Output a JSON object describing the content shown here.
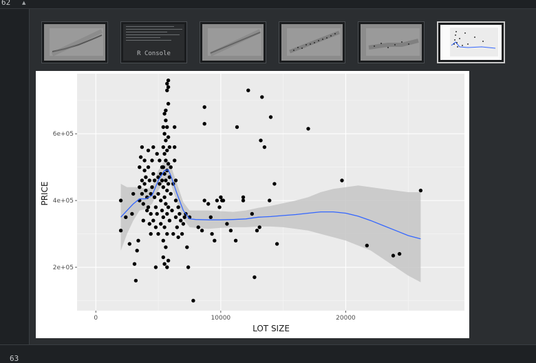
{
  "editor": {
    "line_above": "62",
    "line_below": "63"
  },
  "plots_pane": {
    "thumbnails": [
      {
        "label": "",
        "kind": "plot"
      },
      {
        "label": "R Console",
        "kind": "console"
      },
      {
        "label": "",
        "kind": "plot"
      },
      {
        "label": "",
        "kind": "plot"
      },
      {
        "label": "",
        "kind": "plot"
      },
      {
        "label": "",
        "kind": "plot",
        "active": true
      }
    ]
  },
  "chart_data": {
    "type": "scatter",
    "title": "",
    "xlabel": "LOT SIZE",
    "ylabel": "PRICE",
    "xlim": [
      -1500,
      29500
    ],
    "ylim": [
      70000,
      780000
    ],
    "x_ticks": [
      0,
      10000,
      20000
    ],
    "x_tick_labels": [
      "0",
      "10000",
      "20000"
    ],
    "y_ticks": [
      200000,
      400000,
      600000
    ],
    "y_tick_labels": [
      "2e+05",
      "4e+05",
      "6e+05"
    ],
    "grid": true,
    "panel_background": "#ebebeb",
    "point_color": "#000000",
    "smooth_color": "#3366ff",
    "band_color": "#bdbdbd",
    "points": [
      [
        2000,
        400000
      ],
      [
        2000,
        310000
      ],
      [
        2400,
        350000
      ],
      [
        2700,
        270000
      ],
      [
        2900,
        360000
      ],
      [
        3000,
        420000
      ],
      [
        3100,
        210000
      ],
      [
        3200,
        160000
      ],
      [
        3300,
        250000
      ],
      [
        3400,
        280000
      ],
      [
        3500,
        500000
      ],
      [
        3500,
        440000
      ],
      [
        3500,
        400000
      ],
      [
        3600,
        530000
      ],
      [
        3700,
        560000
      ],
      [
        3700,
        460000
      ],
      [
        3700,
        420000
      ],
      [
        3800,
        390000
      ],
      [
        3800,
        340000
      ],
      [
        3900,
        520000
      ],
      [
        3900,
        490000
      ],
      [
        3900,
        450000
      ],
      [
        4000,
        470000
      ],
      [
        4000,
        430000
      ],
      [
        4100,
        410000
      ],
      [
        4100,
        370000
      ],
      [
        4200,
        550000
      ],
      [
        4200,
        500000
      ],
      [
        4200,
        380000
      ],
      [
        4300,
        330000
      ],
      [
        4300,
        460000
      ],
      [
        4400,
        420000
      ],
      [
        4400,
        360000
      ],
      [
        4400,
        300000
      ],
      [
        4500,
        520000
      ],
      [
        4500,
        440000
      ],
      [
        4600,
        560000
      ],
      [
        4600,
        480000
      ],
      [
        4600,
        340000
      ],
      [
        4700,
        410000
      ],
      [
        4700,
        460000
      ],
      [
        4800,
        380000
      ],
      [
        4800,
        320000
      ],
      [
        4800,
        200000
      ],
      [
        4900,
        540000
      ],
      [
        4900,
        360000
      ],
      [
        5000,
        470000
      ],
      [
        5000,
        420000
      ],
      [
        5000,
        300000
      ],
      [
        5100,
        520000
      ],
      [
        5100,
        450000
      ],
      [
        5200,
        480000
      ],
      [
        5200,
        330000
      ],
      [
        5200,
        400000
      ],
      [
        5300,
        500000
      ],
      [
        5300,
        460000
      ],
      [
        5300,
        370000
      ],
      [
        5400,
        620000
      ],
      [
        5400,
        560000
      ],
      [
        5400,
        500000
      ],
      [
        5400,
        440000
      ],
      [
        5400,
        350000
      ],
      [
        5400,
        280000
      ],
      [
        5400,
        230000
      ],
      [
        5500,
        660000
      ],
      [
        5500,
        600000
      ],
      [
        5500,
        540000
      ],
      [
        5500,
        480000
      ],
      [
        5500,
        410000
      ],
      [
        5500,
        320000
      ],
      [
        5500,
        210000
      ],
      [
        5600,
        670000
      ],
      [
        5600,
        640000
      ],
      [
        5600,
        580000
      ],
      [
        5600,
        520000
      ],
      [
        5600,
        460000
      ],
      [
        5600,
        390000
      ],
      [
        5600,
        260000
      ],
      [
        5700,
        750000
      ],
      [
        5700,
        730000
      ],
      [
        5700,
        620000
      ],
      [
        5700,
        550000
      ],
      [
        5700,
        490000
      ],
      [
        5700,
        430000
      ],
      [
        5700,
        360000
      ],
      [
        5700,
        300000
      ],
      [
        5700,
        200000
      ],
      [
        5800,
        760000
      ],
      [
        5800,
        740000
      ],
      [
        5800,
        690000
      ],
      [
        5800,
        590000
      ],
      [
        5800,
        510000
      ],
      [
        5800,
        450000
      ],
      [
        5800,
        380000
      ],
      [
        5800,
        220000
      ],
      [
        5900,
        560000
      ],
      [
        5900,
        470000
      ],
      [
        5900,
        340000
      ],
      [
        6000,
        500000
      ],
      [
        6000,
        420000
      ],
      [
        6100,
        370000
      ],
      [
        6200,
        450000
      ],
      [
        6200,
        300000
      ],
      [
        6300,
        620000
      ],
      [
        6300,
        560000
      ],
      [
        6300,
        520000
      ],
      [
        6400,
        460000
      ],
      [
        6400,
        400000
      ],
      [
        6400,
        350000
      ],
      [
        6500,
        320000
      ],
      [
        6600,
        380000
      ],
      [
        6600,
        290000
      ],
      [
        6700,
        360000
      ],
      [
        6800,
        340000
      ],
      [
        6900,
        300000
      ],
      [
        7000,
        330000
      ],
      [
        7100,
        350000
      ],
      [
        7200,
        360000
      ],
      [
        7300,
        260000
      ],
      [
        7400,
        200000
      ],
      [
        7500,
        350000
      ],
      [
        7800,
        100000
      ],
      [
        8200,
        320000
      ],
      [
        8500,
        310000
      ],
      [
        8700,
        400000
      ],
      [
        8700,
        630000
      ],
      [
        8700,
        680000
      ],
      [
        9000,
        390000
      ],
      [
        9200,
        350000
      ],
      [
        9300,
        300000
      ],
      [
        9500,
        280000
      ],
      [
        9700,
        400000
      ],
      [
        9900,
        380000
      ],
      [
        10000,
        410000
      ],
      [
        10100,
        400000
      ],
      [
        10200,
        400000
      ],
      [
        10500,
        330000
      ],
      [
        10800,
        310000
      ],
      [
        11200,
        280000
      ],
      [
        11300,
        620000
      ],
      [
        11800,
        410000
      ],
      [
        11800,
        400000
      ],
      [
        12200,
        730000
      ],
      [
        12500,
        360000
      ],
      [
        12700,
        170000
      ],
      [
        12900,
        310000
      ],
      [
        13100,
        320000
      ],
      [
        13200,
        580000
      ],
      [
        13300,
        710000
      ],
      [
        13500,
        560000
      ],
      [
        13900,
        400000
      ],
      [
        14000,
        650000
      ],
      [
        14300,
        450000
      ],
      [
        14500,
        270000
      ],
      [
        17000,
        615000
      ],
      [
        19700,
        460000
      ],
      [
        21700,
        265000
      ],
      [
        23800,
        235000
      ],
      [
        24300,
        240000
      ],
      [
        26000,
        430000
      ]
    ],
    "smooth_curve": [
      [
        2000,
        350000
      ],
      [
        2500,
        370000
      ],
      [
        3000,
        390000
      ],
      [
        3500,
        405000
      ],
      [
        4000,
        405000
      ],
      [
        4500,
        415000
      ],
      [
        5000,
        460000
      ],
      [
        5500,
        490000
      ],
      [
        5800,
        492000
      ],
      [
        6000,
        475000
      ],
      [
        6500,
        420000
      ],
      [
        7000,
        370000
      ],
      [
        7500,
        345000
      ],
      [
        8000,
        343000
      ],
      [
        9000,
        342000
      ],
      [
        10000,
        342000
      ],
      [
        11000,
        343000
      ],
      [
        12000,
        345000
      ],
      [
        13000,
        350000
      ],
      [
        14000,
        352000
      ],
      [
        15000,
        355000
      ],
      [
        16000,
        358000
      ],
      [
        17000,
        362000
      ],
      [
        18000,
        366000
      ],
      [
        19000,
        366000
      ],
      [
        20000,
        362000
      ],
      [
        21000,
        353000
      ],
      [
        22000,
        340000
      ],
      [
        23000,
        325000
      ],
      [
        24000,
        310000
      ],
      [
        25000,
        295000
      ],
      [
        26000,
        285000
      ]
    ],
    "band": [
      [
        2000,
        250000,
        450000
      ],
      [
        2500,
        300000,
        440000
      ],
      [
        3000,
        340000,
        440000
      ],
      [
        3500,
        370000,
        440000
      ],
      [
        4000,
        375000,
        435000
      ],
      [
        4500,
        390000,
        440000
      ],
      [
        5000,
        430000,
        490000
      ],
      [
        5500,
        460000,
        520000
      ],
      [
        5800,
        465000,
        520000
      ],
      [
        6000,
        450000,
        505000
      ],
      [
        6500,
        395000,
        450000
      ],
      [
        7000,
        345000,
        395000
      ],
      [
        7500,
        320000,
        370000
      ],
      [
        8000,
        318000,
        370000
      ],
      [
        9000,
        315000,
        370000
      ],
      [
        10000,
        318000,
        368000
      ],
      [
        11000,
        320000,
        366000
      ],
      [
        12000,
        320000,
        370000
      ],
      [
        13000,
        322000,
        378000
      ],
      [
        14000,
        322000,
        384000
      ],
      [
        15000,
        320000,
        392000
      ],
      [
        16000,
        315000,
        400000
      ],
      [
        17000,
        310000,
        410000
      ],
      [
        18000,
        300000,
        425000
      ],
      [
        19000,
        290000,
        435000
      ],
      [
        20000,
        280000,
        440000
      ],
      [
        21000,
        265000,
        445000
      ],
      [
        22000,
        250000,
        440000
      ],
      [
        23000,
        225000,
        435000
      ],
      [
        24000,
        200000,
        430000
      ],
      [
        25000,
        175000,
        425000
      ],
      [
        26000,
        155000,
        425000
      ]
    ]
  }
}
